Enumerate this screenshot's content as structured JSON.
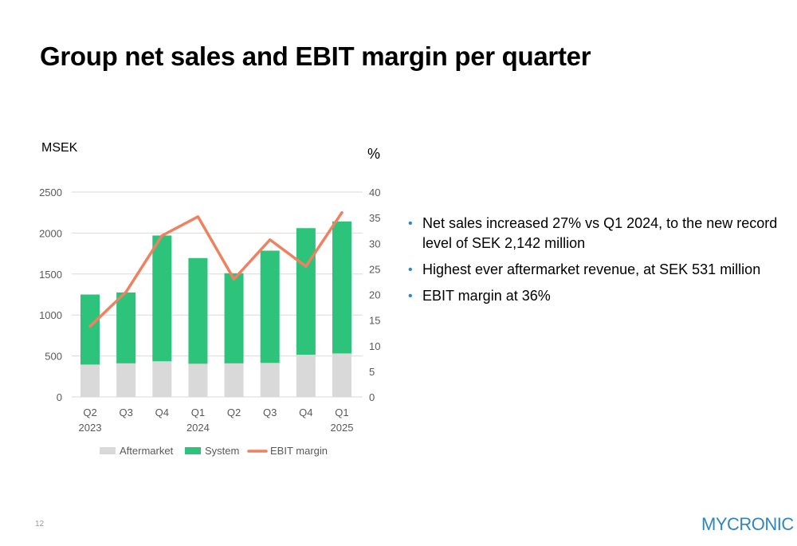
{
  "page": {
    "title": "Group net sales and EBIT margin per quarter",
    "page_number": "12",
    "logo_text": "MYCRONIC"
  },
  "bullets": [
    "Net sales increased 27% vs Q1 2024, to the new record level of SEK 2,142 million",
    "Highest ever aftermarket revenue, at SEK 531 million",
    "EBIT margin at 36%"
  ],
  "colors": {
    "aftermarket": "#d9d9d9",
    "system": "#2dc37a",
    "ebit": "#ef8160",
    "bullet": "#2e86c1",
    "grid": "#d9d9d9",
    "axis_text": "#595959"
  },
  "chart_data": {
    "type": "bar",
    "stacked": true,
    "categories": [
      [
        "Q2",
        "2023"
      ],
      [
        "Q3",
        ""
      ],
      [
        "Q4",
        ""
      ],
      [
        "Q1",
        "2024"
      ],
      [
        "Q2",
        ""
      ],
      [
        "Q3",
        ""
      ],
      [
        "Q4",
        ""
      ],
      [
        "Q1",
        "2025"
      ]
    ],
    "series": [
      {
        "name": "Aftermarket",
        "type": "bar",
        "axis": "left",
        "values": [
          395,
          410,
          435,
          405,
          410,
          415,
          515,
          531
        ]
      },
      {
        "name": "System",
        "type": "bar",
        "axis": "left",
        "values": [
          855,
          865,
          1535,
          1290,
          1100,
          1370,
          1545,
          1611
        ]
      },
      {
        "name": "EBIT margin",
        "type": "line",
        "axis": "right",
        "values": [
          13.8,
          20.5,
          31.5,
          35.2,
          23.0,
          30.7,
          25.5,
          36.0
        ]
      }
    ],
    "ylabel_left": "MSEK",
    "ylabel_right": "%",
    "ylim_left": [
      0,
      2500
    ],
    "yticks_left": [
      0,
      500,
      1000,
      1500,
      2000,
      2500
    ],
    "ylim_right": [
      0,
      40
    ],
    "yticks_right": [
      0,
      5,
      10,
      15,
      20,
      25,
      30,
      35,
      40
    ],
    "grid": true,
    "legend": "bottom"
  }
}
